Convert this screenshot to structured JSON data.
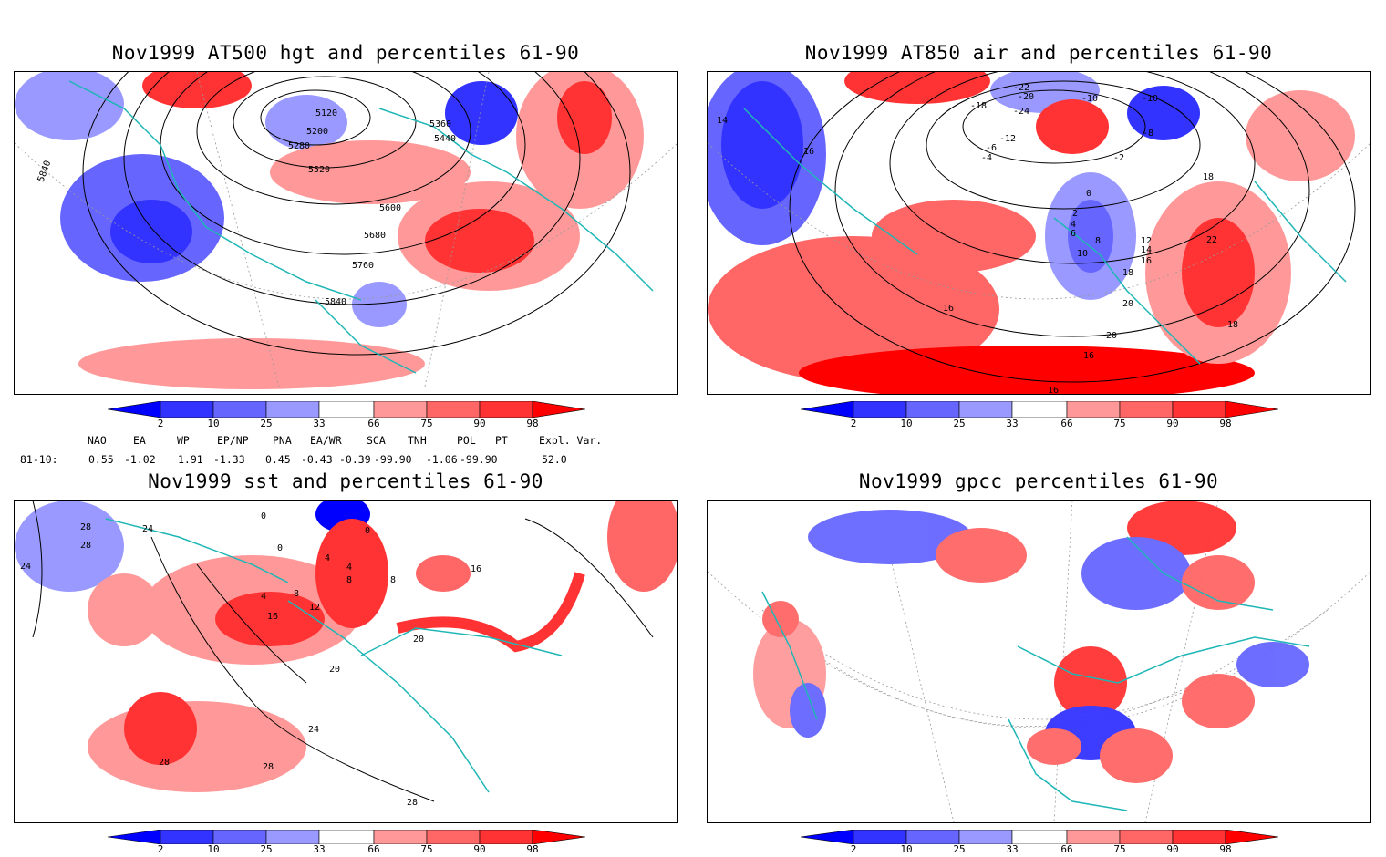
{
  "panels": [
    {
      "id": "hgt",
      "title": "Nov1999 AT500 hgt and percentiles 61-90",
      "contour_labels": [
        "5120",
        "5200",
        "5280",
        "5360",
        "5440",
        "5520",
        "5600",
        "5680",
        "5760",
        "5840",
        "5840"
      ]
    },
    {
      "id": "air",
      "title": "Nov1999 AT850 air and percentiles 61-90",
      "contour_labels": [
        "-22",
        "-20",
        "-24",
        "-18",
        "-12",
        "-10",
        "-10",
        "-8",
        "-6",
        "-4",
        "-2",
        "0",
        "2",
        "4",
        "6",
        "8",
        "10",
        "12",
        "14",
        "14",
        "16",
        "16",
        "16",
        "16",
        "16",
        "18",
        "18",
        "18",
        "20",
        "20",
        "22"
      ]
    },
    {
      "id": "sst",
      "title": "Nov1999 sst and percentiles 61-90",
      "contour_labels": [
        "0",
        "0",
        "0",
        "4",
        "4",
        "4",
        "8",
        "8",
        "8",
        "12",
        "16",
        "16",
        "20",
        "20",
        "24",
        "24",
        "24",
        "28",
        "28",
        "28",
        "28",
        "28"
      ]
    },
    {
      "id": "gpcc",
      "title": "Nov1999 gpcc percentiles 61-90",
      "contour_labels": []
    }
  ],
  "colorbar": {
    "labels": [
      "2",
      "10",
      "25",
      "33",
      "66",
      "75",
      "90",
      "98"
    ],
    "colors": [
      "#0000ff",
      "#3333ff",
      "#6666ff",
      "#9999ff",
      "#ffffff",
      "#ff9999",
      "#ff6666",
      "#ff3333",
      "#ff0000"
    ]
  },
  "indices": {
    "headers": [
      "NAO",
      "EA",
      "WP",
      "EP/NP",
      "PNA",
      "EA/WR",
      "SCA",
      "TNH",
      "POL",
      "PT",
      "Expl. Var."
    ],
    "row_label": "81-10:",
    "values": [
      "0.55",
      "-1.02",
      "1.91",
      "-1.33",
      "0.45",
      "-0.43",
      "-0.39",
      "-99.90",
      "-1.06",
      "-99.90",
      "52.0"
    ]
  },
  "colors": {
    "coast": "#1fb6b6",
    "grid": "#999999",
    "contour": "#000000"
  }
}
